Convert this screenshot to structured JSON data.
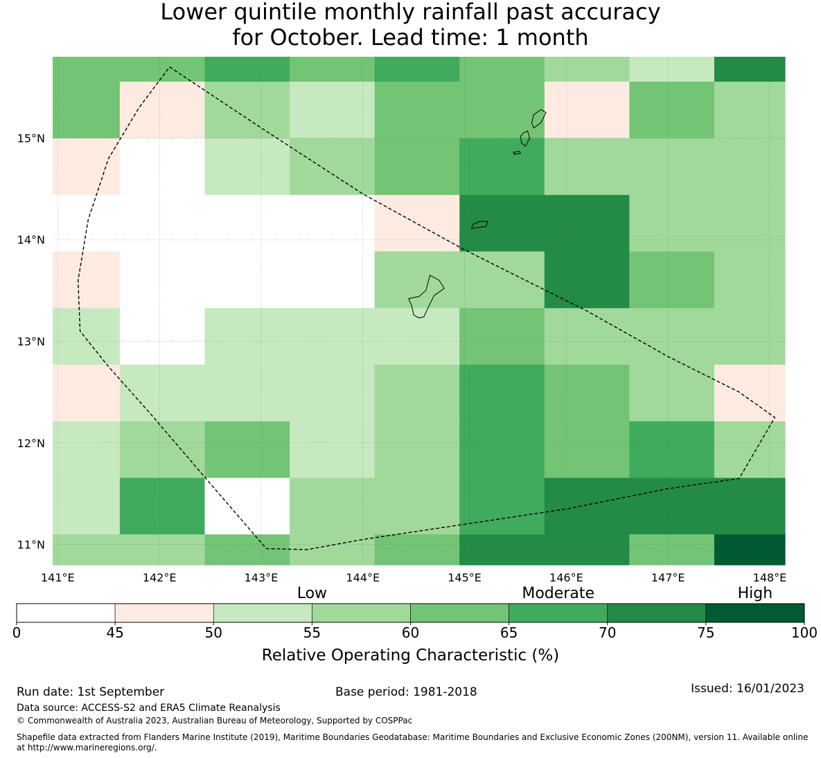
{
  "title": {
    "line1": "Lower quintile monthly rainfall past accuracy",
    "line2": "for October. Lead time: 1 month"
  },
  "map": {
    "lon_range": [
      140.95,
      148.15
    ],
    "lat_range": [
      10.8,
      15.8
    ],
    "lon_ticks": [
      {
        "value": 141,
        "label": "141°E"
      },
      {
        "value": 142,
        "label": "142°E"
      },
      {
        "value": 143,
        "label": "143°E"
      },
      {
        "value": 144,
        "label": "144°E"
      },
      {
        "value": 145,
        "label": "145°E"
      },
      {
        "value": 146,
        "label": "146°E"
      },
      {
        "value": 147,
        "label": "147°E"
      },
      {
        "value": 148,
        "label": "148°E"
      }
    ],
    "lat_ticks": [
      {
        "value": 11,
        "label": "11°N"
      },
      {
        "value": 12,
        "label": "12°N"
      },
      {
        "value": 13,
        "label": "13°N"
      },
      {
        "value": 14,
        "label": "14°N"
      },
      {
        "value": 15,
        "label": "15°N"
      }
    ],
    "grid_lon_edges": [
      140.95,
      141.61,
      142.445,
      143.28,
      144.115,
      144.95,
      145.785,
      146.62,
      147.455,
      148.15
    ],
    "grid_lat_edges": [
      15.8,
      15.555,
      14.998,
      14.44,
      13.884,
      13.326,
      12.77,
      12.213,
      11.656,
      11.1,
      10.8
    ],
    "grid_classes": [
      [
        5,
        5,
        6,
        5,
        6,
        5,
        4,
        3,
        7
      ],
      [
        5,
        2,
        4,
        3,
        5,
        5,
        2,
        5,
        4
      ],
      [
        2,
        1,
        3,
        4,
        5,
        6,
        4,
        4,
        4
      ],
      [
        1,
        1,
        1,
        1,
        2,
        7,
        7,
        4,
        4
      ],
      [
        2,
        1,
        1,
        1,
        4,
        4,
        7,
        5,
        4
      ],
      [
        3,
        1,
        3,
        3,
        3,
        5,
        4,
        4,
        4
      ],
      [
        2,
        3,
        3,
        3,
        4,
        6,
        5,
        4,
        2
      ],
      [
        3,
        4,
        5,
        3,
        4,
        6,
        5,
        6,
        4
      ],
      [
        3,
        6,
        1,
        4,
        4,
        6,
        7,
        7,
        7
      ],
      [
        4,
        4,
        5,
        4,
        5,
        7,
        7,
        5,
        8
      ]
    ],
    "eez_boundary": [
      [
        142.1,
        15.7
      ],
      [
        143.0,
        15.1
      ],
      [
        144.0,
        14.45
      ],
      [
        145.0,
        13.9
      ],
      [
        145.6,
        13.6
      ],
      [
        146.2,
        13.3
      ],
      [
        147.0,
        12.85
      ],
      [
        147.7,
        12.5
      ],
      [
        148.05,
        12.25
      ],
      [
        147.7,
        11.65
      ],
      [
        147.0,
        11.55
      ],
      [
        146.0,
        11.35
      ],
      [
        145.0,
        11.2
      ],
      [
        144.0,
        11.05
      ],
      [
        143.45,
        10.95
      ],
      [
        143.05,
        10.96
      ],
      [
        142.5,
        11.6
      ],
      [
        141.9,
        12.3
      ],
      [
        141.5,
        12.75
      ],
      [
        141.22,
        13.1
      ],
      [
        141.2,
        13.6
      ],
      [
        141.3,
        14.2
      ],
      [
        141.5,
        14.8
      ],
      [
        141.8,
        15.3
      ],
      [
        142.1,
        15.7
      ]
    ],
    "islands": [
      {
        "name": "guam",
        "coords": [
          [
            144.66,
            13.65
          ],
          [
            144.75,
            13.6
          ],
          [
            144.8,
            13.52
          ],
          [
            144.7,
            13.45
          ],
          [
            144.65,
            13.35
          ],
          [
            144.6,
            13.24
          ],
          [
            144.55,
            13.23
          ],
          [
            144.5,
            13.26
          ],
          [
            144.48,
            13.35
          ],
          [
            144.45,
            13.42
          ],
          [
            144.55,
            13.44
          ],
          [
            144.62,
            13.5
          ],
          [
            144.66,
            13.65
          ]
        ]
      },
      {
        "name": "rota",
        "coords": [
          [
            145.08,
            14.15
          ],
          [
            145.15,
            14.18
          ],
          [
            145.23,
            14.18
          ],
          [
            145.21,
            14.13
          ],
          [
            145.13,
            14.12
          ],
          [
            145.07,
            14.11
          ],
          [
            145.08,
            14.15
          ]
        ]
      },
      {
        "name": "saipan",
        "coords": [
          [
            145.68,
            15.23
          ],
          [
            145.75,
            15.28
          ],
          [
            145.8,
            15.25
          ],
          [
            145.75,
            15.15
          ],
          [
            145.68,
            15.1
          ],
          [
            145.66,
            15.15
          ],
          [
            145.68,
            15.23
          ]
        ]
      },
      {
        "name": "tinian",
        "coords": [
          [
            145.58,
            15.05
          ],
          [
            145.62,
            15.07
          ],
          [
            145.64,
            15.0
          ],
          [
            145.6,
            14.92
          ],
          [
            145.56,
            14.95
          ],
          [
            145.55,
            15.02
          ],
          [
            145.58,
            15.05
          ]
        ]
      },
      {
        "name": "aguijan",
        "coords": [
          [
            145.48,
            14.86
          ],
          [
            145.54,
            14.87
          ],
          [
            145.55,
            14.85
          ],
          [
            145.49,
            14.84
          ],
          [
            145.48,
            14.86
          ]
        ]
      }
    ]
  },
  "legend": {
    "categories": [
      {
        "label": "Low",
        "span": [
          50,
          60
        ]
      },
      {
        "label": "Moderate",
        "span": [
          60,
          75
        ]
      },
      {
        "label": "High",
        "span": [
          75,
          100
        ]
      }
    ],
    "bounds": [
      "0",
      "45",
      "50",
      "55",
      "60",
      "65",
      "70",
      "75",
      "100"
    ],
    "colors": [
      "#ffffff",
      "#fdebe1",
      "#c7e9c0",
      "#a1d99b",
      "#74c476",
      "#41ab5d",
      "#238b45",
      "#005a32"
    ],
    "label": "Relative Operating Characteristic (%)"
  },
  "footer": {
    "run_date": "Run date: 1st September",
    "base_period": "Base period: 1981-2018",
    "issued": "Issued: 16/01/2023",
    "data_source": "Data source: ACCESS-S2 and ERA5 Climate Reanalysis",
    "copyright": "© Commonwealth of Australia 2023, Australian Bureau of Meteorology, Supported by COSPPac",
    "shapefile_line1": "Shapefile data extracted from Flanders Marine Institute (2019), Maritime Boundaries Geodatabase: Maritime Boundaries and Exclusive Economic Zones (200NM), version 11. Available online",
    "shapefile_line2": "at http://www.marineregions.org/."
  }
}
